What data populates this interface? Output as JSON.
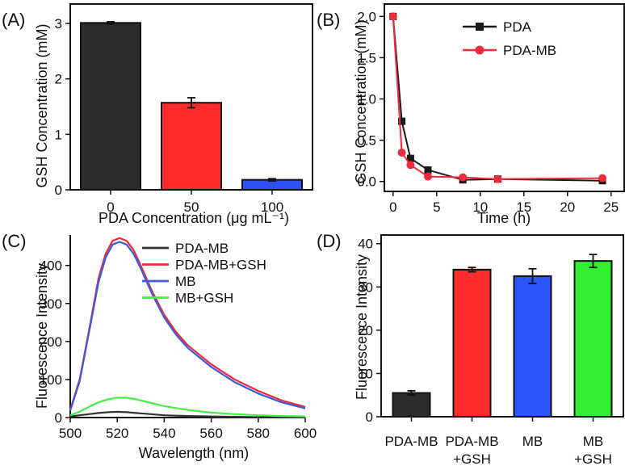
{
  "chart_data": [
    {
      "panel": "(A)",
      "type": "bar",
      "categories": [
        "0",
        "50",
        "100"
      ],
      "values": [
        3.01,
        1.57,
        0.18
      ],
      "errors": [
        0.02,
        0.09,
        0.02
      ],
      "colors": [
        "#2b2b2b",
        "#ff2b2b",
        "#2f4ff5"
      ],
      "xlabel": "PDA Concentration (μg mL⁻¹)",
      "ylabel": "GSH Concentration (mM)",
      "ylim": [
        0,
        3.35
      ],
      "yticks": [
        0,
        1,
        2,
        3
      ]
    },
    {
      "panel": "(B)",
      "type": "line",
      "xlabel": "Time (h)",
      "ylabel": "GSH Concentration (mM)",
      "xlim": [
        -1,
        26.5
      ],
      "ylim": [
        -0.12,
        2.15
      ],
      "xticks": [
        0,
        5,
        10,
        15,
        20,
        25
      ],
      "yticks": [
        0.0,
        0.5,
        1.0,
        1.5,
        2.0
      ],
      "legend_position": "top-right",
      "series": [
        {
          "name": "PDA",
          "color": "#1a1a1a",
          "marker": "square",
          "x": [
            0,
            1,
            2,
            4,
            8,
            12,
            24
          ],
          "y": [
            2.0,
            0.73,
            0.28,
            0.14,
            0.02,
            0.03,
            0.01
          ]
        },
        {
          "name": "PDA-MB",
          "color": "#ee2b3b",
          "marker": "circle",
          "x": [
            0,
            1,
            2,
            4,
            8,
            12,
            24
          ],
          "y": [
            2.0,
            0.35,
            0.2,
            0.06,
            0.05,
            0.03,
            0.04
          ]
        }
      ]
    },
    {
      "panel": "(C)",
      "type": "line",
      "xlabel": "Wavelength (nm)",
      "ylabel": "Fluorescence Intensity",
      "xlim": [
        500,
        600
      ],
      "ylim": [
        0,
        480
      ],
      "xticks": [
        500,
        520,
        540,
        560,
        580,
        600
      ],
      "yticks": [
        0,
        100,
        200,
        300,
        400
      ],
      "legend_position": "top-right",
      "series": [
        {
          "name": "PDA-MB",
          "color": "#333333",
          "x": [
            500,
            504,
            508,
            512,
            516,
            520,
            524,
            528,
            532,
            536,
            540,
            550,
            560,
            570,
            580,
            590,
            600
          ],
          "y": [
            3,
            6,
            9,
            12,
            14,
            15,
            14,
            12,
            10,
            8,
            6,
            4,
            3,
            2,
            1,
            1,
            0
          ]
        },
        {
          "name": "PDA-MB+GSH",
          "color": "#ee2b3b",
          "x": [
            500,
            504,
            508,
            512,
            515,
            518,
            521,
            524,
            527,
            530,
            535,
            540,
            545,
            550,
            560,
            570,
            580,
            590,
            600
          ],
          "y": [
            20,
            100,
            230,
            365,
            430,
            465,
            472,
            465,
            440,
            400,
            330,
            270,
            225,
            190,
            140,
            100,
            70,
            45,
            28
          ]
        },
        {
          "name": "MB",
          "color": "#3b5bdb",
          "x": [
            500,
            504,
            508,
            512,
            515,
            518,
            521,
            524,
            527,
            530,
            535,
            540,
            545,
            550,
            560,
            570,
            580,
            590,
            600
          ],
          "y": [
            18,
            95,
            225,
            355,
            420,
            455,
            462,
            455,
            430,
            392,
            323,
            263,
            218,
            183,
            133,
            93,
            63,
            40,
            24
          ]
        },
        {
          "name": "MB+GSH",
          "color": "#44ee44",
          "x": [
            500,
            504,
            508,
            512,
            516,
            520,
            524,
            528,
            532,
            536,
            540,
            550,
            560,
            570,
            580,
            590,
            600
          ],
          "y": [
            6,
            15,
            28,
            40,
            48,
            52,
            52,
            48,
            42,
            36,
            30,
            20,
            13,
            9,
            6,
            4,
            3
          ]
        }
      ]
    },
    {
      "panel": "(D)",
      "type": "bar",
      "categories": [
        "PDA-MB",
        "PDA-MB\n+GSH",
        "MB",
        "MB\n+GSH"
      ],
      "values": [
        5.5,
        34.0,
        32.5,
        36.0
      ],
      "errors": [
        0.5,
        0.5,
        1.7,
        1.5
      ],
      "colors": [
        "#2b2b2b",
        "#ff2b2b",
        "#2b55ff",
        "#33ee33"
      ],
      "xlabel": "",
      "ylabel": "Fluorescence Intensity",
      "ylim": [
        0,
        42
      ],
      "yticks": [
        0,
        10,
        20,
        30,
        40
      ]
    }
  ]
}
